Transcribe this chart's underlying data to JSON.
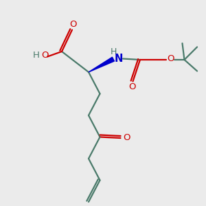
{
  "bg_color": "#ebebeb",
  "bond_color": "#4a7a6a",
  "o_color": "#cc0000",
  "n_color": "#0000cc",
  "h_color": "#4a7a6a",
  "lw": 1.6,
  "figsize": [
    3.0,
    3.0
  ],
  "dpi": 100,
  "xlim": [
    0,
    10
  ],
  "ylim": [
    0,
    10
  ]
}
